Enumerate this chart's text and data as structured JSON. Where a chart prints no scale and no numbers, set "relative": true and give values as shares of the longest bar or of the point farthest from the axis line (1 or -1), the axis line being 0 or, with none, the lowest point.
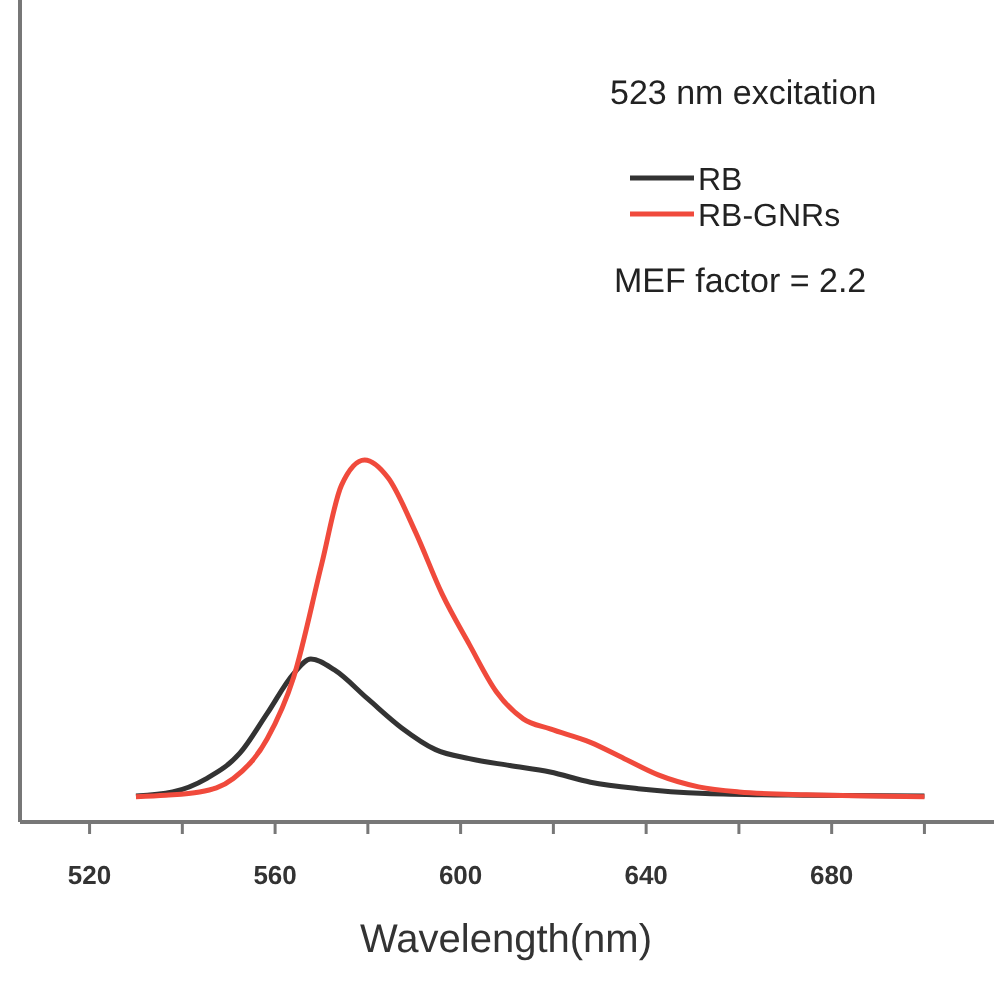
{
  "chart_data": {
    "type": "line",
    "xlabel": "Wavelength(nm)",
    "relative": true,
    "xlim": [
      505,
      715
    ],
    "xticks": [
      520,
      {
        "value": 540,
        "label": null
      },
      560,
      {
        "value": 580,
        "label": null
      },
      600,
      {
        "value": 620,
        "label": null
      },
      640,
      {
        "value": 660,
        "label": null
      },
      680,
      {
        "value": 700,
        "label": null
      }
    ],
    "legend": "top right",
    "line_style": "solid",
    "annotations": [
      "523 nm excitation",
      "MEF factor = 2.2"
    ],
    "series": [
      {
        "name": "RB",
        "color": "#333333",
        "x": [
          530,
          537.9,
          545.2,
          552.4,
          558.3,
          564,
          567.7,
          572.8,
          580,
          587.3,
          594.6,
          601.9,
          610.6,
          619.3,
          628,
          638.3,
          652.8,
          674.6,
          700
        ],
        "values": [
          0.072,
          0.083,
          0.12,
          0.19,
          0.3,
          0.41,
          0.45,
          0.42,
          0.34,
          0.26,
          0.2,
          0.175,
          0.156,
          0.138,
          0.11,
          0.092,
          0.079,
          0.074,
          0.072
        ]
      },
      {
        "name": "RB-GNRs",
        "color": "#f04a3c",
        "x": [
          530,
          536.4,
          543.7,
          551,
          558.3,
          564,
          570,
          574.3,
          579.3,
          584.4,
          590.3,
          596,
          601.9,
          607.7,
          613.5,
          619.3,
          628,
          635.3,
          642.6,
          651.3,
          660,
          674.6,
          700
        ],
        "values": [
          0.07,
          0.074,
          0.083,
          0.12,
          0.23,
          0.4,
          0.71,
          0.93,
          1,
          0.95,
          0.8,
          0.63,
          0.49,
          0.36,
          0.285,
          0.257,
          0.22,
          0.175,
          0.13,
          0.097,
          0.083,
          0.075,
          0.07
        ]
      }
    ]
  }
}
